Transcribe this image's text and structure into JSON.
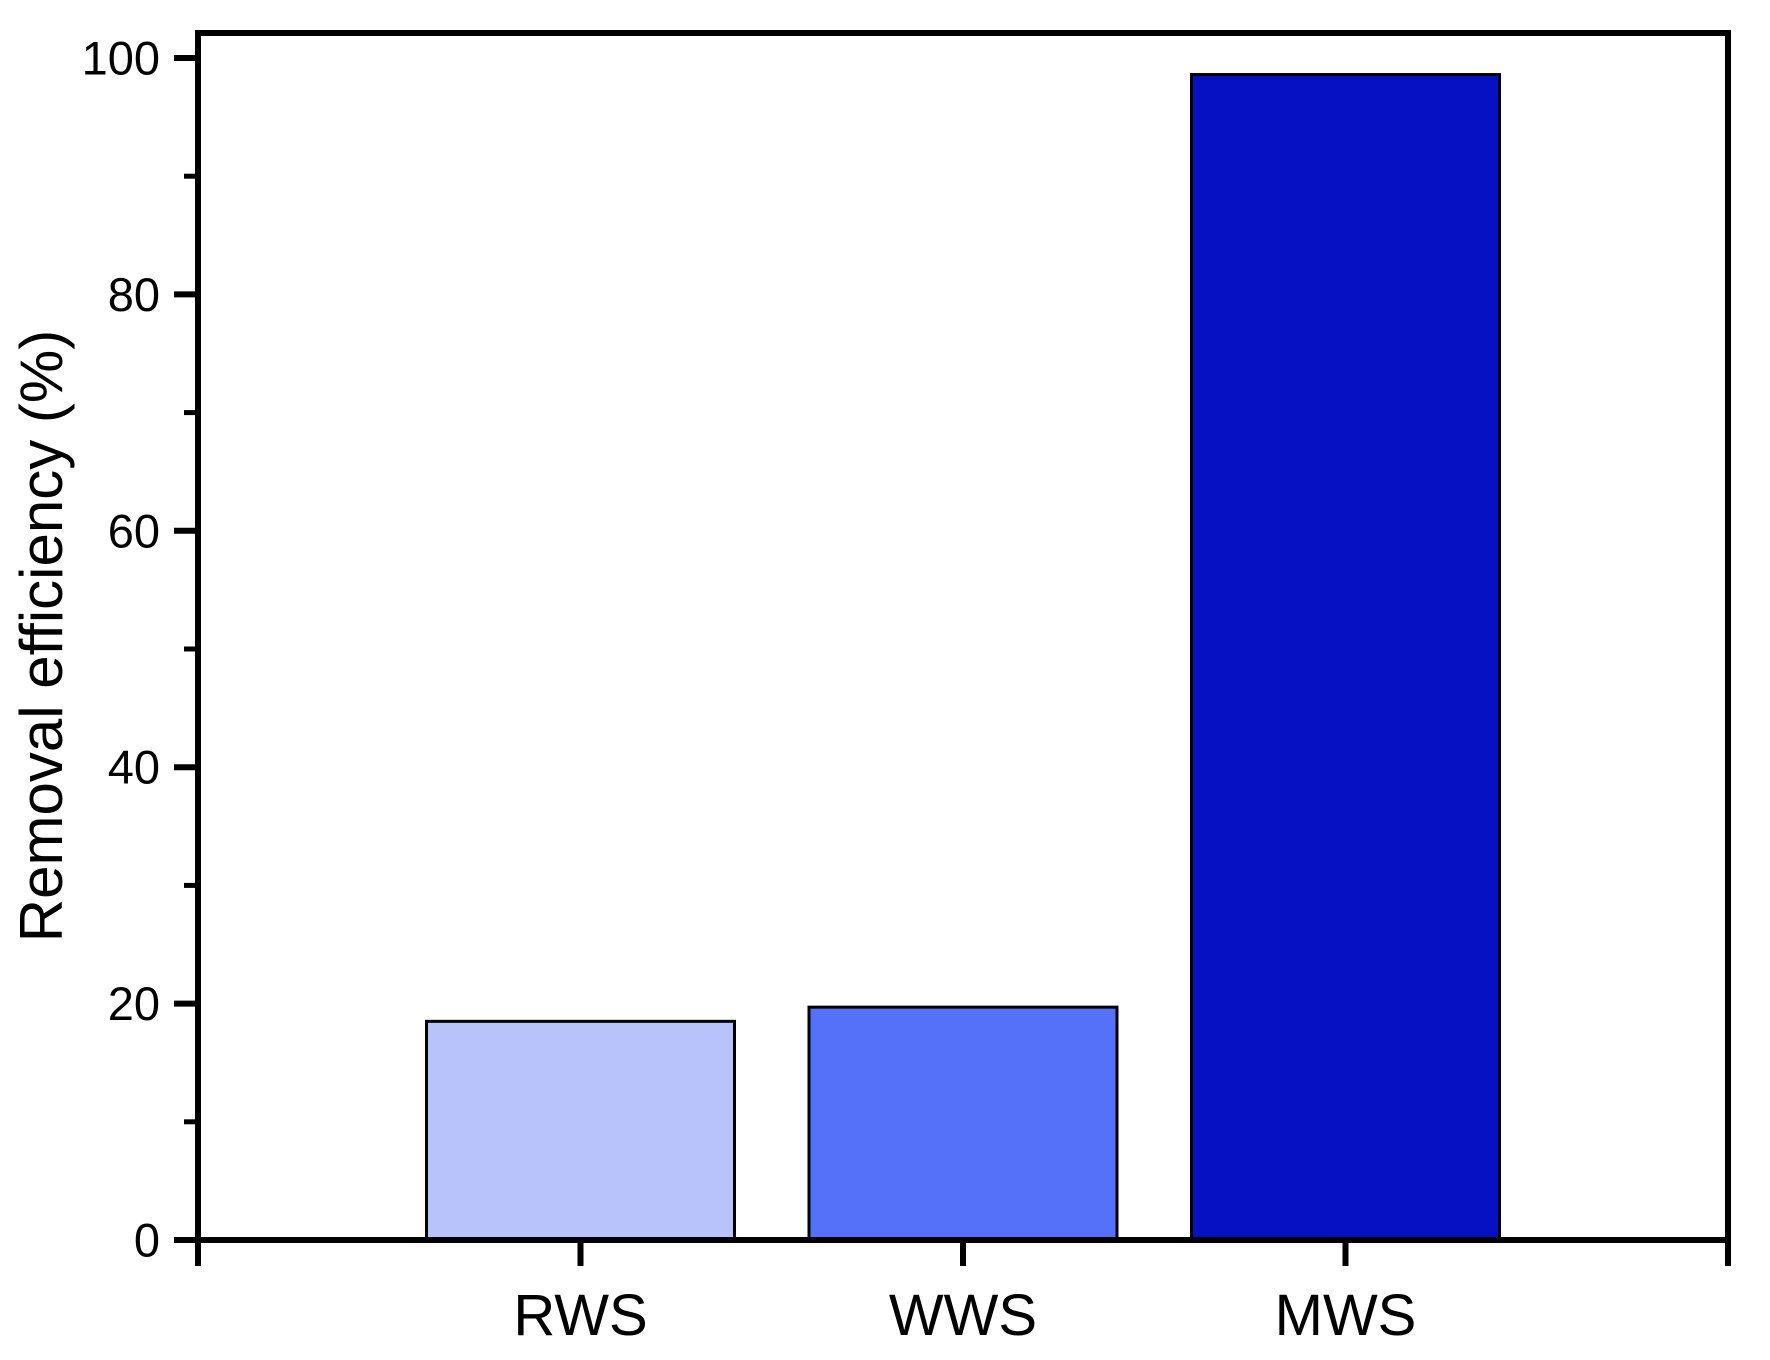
{
  "chart_data": {
    "type": "bar",
    "title": "",
    "xlabel": "",
    "ylabel": "Removal efficiency (%)",
    "categories": [
      "RWS",
      "WWS",
      "MWS"
    ],
    "values": [
      18.5,
      19.7,
      98.6
    ],
    "bar_colors": [
      "#b8c3fb",
      "#5571fa",
      "#0511c2"
    ],
    "bar_border_color": "#000000",
    "axis_color": "#000000",
    "background_color": "#ffffff",
    "ylim": [
      0,
      100
    ],
    "yticks_major": [
      0,
      20,
      40,
      60,
      80,
      100
    ],
    "yticks_minor": [
      10,
      30,
      50,
      70,
      90
    ],
    "grid": false,
    "legend": false,
    "frame": true
  }
}
